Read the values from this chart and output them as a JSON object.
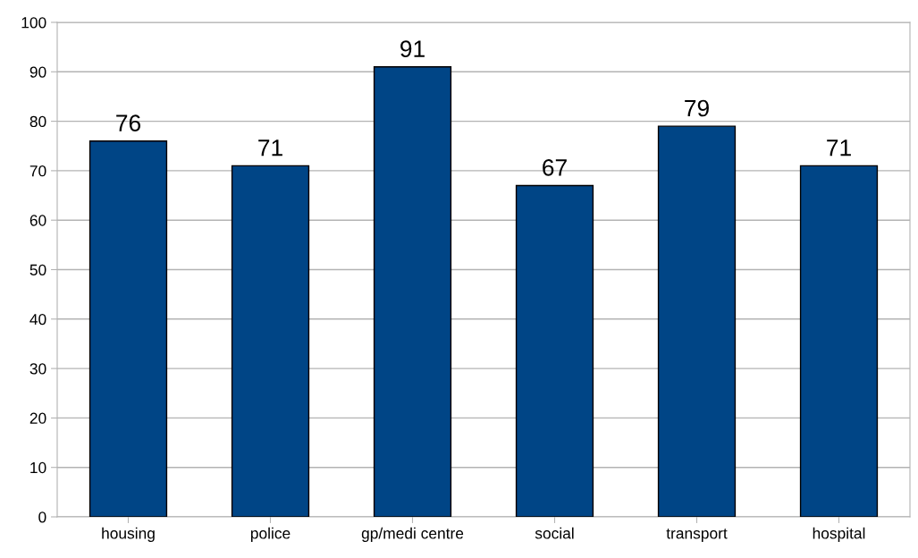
{
  "chart_data": {
    "type": "bar",
    "categories": [
      "housing",
      "police",
      "gp/medi centre",
      "social",
      "transport",
      "hospital"
    ],
    "values": [
      76,
      71,
      91,
      67,
      79,
      71
    ],
    "color": "#004586",
    "ylim": [
      0,
      100
    ],
    "yticks": [
      0,
      10,
      20,
      30,
      40,
      50,
      60,
      70,
      80,
      90,
      100
    ],
    "grid": "y",
    "data_labels": true,
    "legend": false
  }
}
